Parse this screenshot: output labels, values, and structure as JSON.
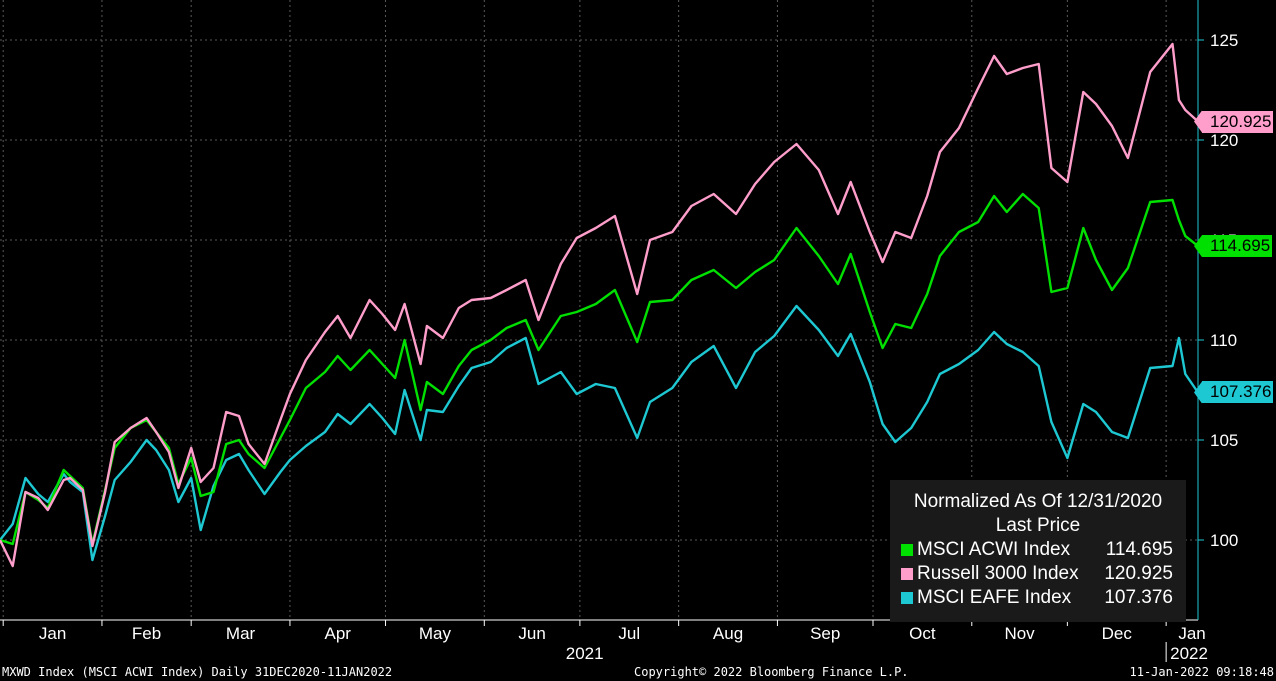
{
  "chart_data": {
    "type": "line",
    "title": "",
    "xlabel": "",
    "ylabel": "",
    "ylim": [
      96,
      127
    ],
    "y_ticks": [
      100,
      105,
      110,
      115,
      120,
      125
    ],
    "x_tick_labels": [
      "Jan",
      "Feb",
      "Mar",
      "Apr",
      "May",
      "Jun",
      "Jul",
      "Aug",
      "Sep",
      "Oct",
      "Nov",
      "Dec",
      "Jan"
    ],
    "year_labels": [
      "2021",
      "2022"
    ],
    "grid": true,
    "legend_position": "bottom-right",
    "legend": {
      "title_line1": "Normalized As Of 12/31/2020",
      "title_line2": "Last Price"
    },
    "x_start": "2020-12-31",
    "x_end": "2022-01-11",
    "series": [
      {
        "name": "MSCI ACWI Index",
        "color": "#00e000",
        "last_price": "114.695",
        "points": [
          [
            "2020-12-31",
            100.0
          ],
          [
            "2021-01-04",
            99.8
          ],
          [
            "2021-01-08",
            102.4
          ],
          [
            "2021-01-12",
            102.0
          ],
          [
            "2021-01-15",
            101.6
          ],
          [
            "2021-01-20",
            103.5
          ],
          [
            "2021-01-22",
            103.2
          ],
          [
            "2021-01-26",
            102.6
          ],
          [
            "2021-01-29",
            99.8
          ],
          [
            "2021-02-02",
            102.5
          ],
          [
            "2021-02-05",
            104.6
          ],
          [
            "2021-02-10",
            105.6
          ],
          [
            "2021-02-15",
            106.0
          ],
          [
            "2021-02-18",
            105.4
          ],
          [
            "2021-02-22",
            104.6
          ],
          [
            "2021-02-25",
            102.8
          ],
          [
            "2021-03-01",
            104.1
          ],
          [
            "2021-03-04",
            102.2
          ],
          [
            "2021-03-08",
            102.4
          ],
          [
            "2021-03-12",
            104.8
          ],
          [
            "2021-03-16",
            105.0
          ],
          [
            "2021-03-19",
            104.3
          ],
          [
            "2021-03-24",
            103.6
          ],
          [
            "2021-03-29",
            105.1
          ],
          [
            "2021-04-01",
            106.0
          ],
          [
            "2021-04-06",
            107.6
          ],
          [
            "2021-04-12",
            108.4
          ],
          [
            "2021-04-16",
            109.2
          ],
          [
            "2021-04-20",
            108.5
          ],
          [
            "2021-04-26",
            109.5
          ],
          [
            "2021-04-30",
            108.8
          ],
          [
            "2021-05-04",
            108.1
          ],
          [
            "2021-05-07",
            110.0
          ],
          [
            "2021-05-12",
            106.5
          ],
          [
            "2021-05-14",
            107.9
          ],
          [
            "2021-05-19",
            107.3
          ],
          [
            "2021-05-24",
            108.7
          ],
          [
            "2021-05-28",
            109.5
          ],
          [
            "2021-06-03",
            110.0
          ],
          [
            "2021-06-08",
            110.6
          ],
          [
            "2021-06-14",
            111.0
          ],
          [
            "2021-06-18",
            109.5
          ],
          [
            "2021-06-25",
            111.2
          ],
          [
            "2021-06-30",
            111.4
          ],
          [
            "2021-07-06",
            111.8
          ],
          [
            "2021-07-12",
            112.5
          ],
          [
            "2021-07-19",
            109.9
          ],
          [
            "2021-07-23",
            111.9
          ],
          [
            "2021-07-30",
            112.0
          ],
          [
            "2021-08-05",
            113.0
          ],
          [
            "2021-08-12",
            113.5
          ],
          [
            "2021-08-19",
            112.6
          ],
          [
            "2021-08-25",
            113.4
          ],
          [
            "2021-08-31",
            114.0
          ],
          [
            "2021-09-07",
            115.6
          ],
          [
            "2021-09-14",
            114.2
          ],
          [
            "2021-09-20",
            112.8
          ],
          [
            "2021-09-24",
            114.3
          ],
          [
            "2021-09-30",
            111.4
          ],
          [
            "2021-10-04",
            109.6
          ],
          [
            "2021-10-08",
            110.8
          ],
          [
            "2021-10-13",
            110.6
          ],
          [
            "2021-10-18",
            112.3
          ],
          [
            "2021-10-22",
            114.2
          ],
          [
            "2021-10-28",
            115.4
          ],
          [
            "2021-11-03",
            115.9
          ],
          [
            "2021-11-08",
            117.2
          ],
          [
            "2021-11-12",
            116.4
          ],
          [
            "2021-11-17",
            117.3
          ],
          [
            "2021-11-22",
            116.6
          ],
          [
            "2021-11-26",
            112.4
          ],
          [
            "2021-12-01",
            112.6
          ],
          [
            "2021-12-06",
            115.6
          ],
          [
            "2021-12-10",
            114.0
          ],
          [
            "2021-12-15",
            112.5
          ],
          [
            "2021-12-20",
            113.6
          ],
          [
            "2021-12-27",
            116.9
          ],
          [
            "2022-01-03",
            117.0
          ],
          [
            "2022-01-05",
            116.0
          ],
          [
            "2022-01-07",
            115.2
          ],
          [
            "2022-01-11",
            114.695
          ]
        ]
      },
      {
        "name": "Russell 3000 Index",
        "color": "#ff9ecb",
        "last_price": "120.925",
        "points": [
          [
            "2020-12-31",
            100.0
          ],
          [
            "2021-01-04",
            98.7
          ],
          [
            "2021-01-08",
            102.4
          ],
          [
            "2021-01-12",
            102.1
          ],
          [
            "2021-01-15",
            101.5
          ],
          [
            "2021-01-20",
            103.0
          ],
          [
            "2021-01-22",
            103.1
          ],
          [
            "2021-01-26",
            102.5
          ],
          [
            "2021-01-29",
            99.7
          ],
          [
            "2021-02-02",
            102.4
          ],
          [
            "2021-02-05",
            104.9
          ],
          [
            "2021-02-10",
            105.6
          ],
          [
            "2021-02-15",
            106.1
          ],
          [
            "2021-02-18",
            105.4
          ],
          [
            "2021-02-22",
            104.4
          ],
          [
            "2021-02-25",
            102.6
          ],
          [
            "2021-03-01",
            104.6
          ],
          [
            "2021-03-04",
            102.9
          ],
          [
            "2021-03-08",
            103.6
          ],
          [
            "2021-03-12",
            106.4
          ],
          [
            "2021-03-16",
            106.2
          ],
          [
            "2021-03-19",
            104.8
          ],
          [
            "2021-03-24",
            103.8
          ],
          [
            "2021-03-29",
            106.0
          ],
          [
            "2021-04-01",
            107.3
          ],
          [
            "2021-04-06",
            109.0
          ],
          [
            "2021-04-12",
            110.4
          ],
          [
            "2021-04-16",
            111.2
          ],
          [
            "2021-04-20",
            110.1
          ],
          [
            "2021-04-26",
            112.0
          ],
          [
            "2021-04-30",
            111.3
          ],
          [
            "2021-05-04",
            110.5
          ],
          [
            "2021-05-07",
            111.8
          ],
          [
            "2021-05-12",
            108.8
          ],
          [
            "2021-05-14",
            110.7
          ],
          [
            "2021-05-19",
            110.1
          ],
          [
            "2021-05-24",
            111.6
          ],
          [
            "2021-05-28",
            112.0
          ],
          [
            "2021-06-03",
            112.1
          ],
          [
            "2021-06-08",
            112.5
          ],
          [
            "2021-06-14",
            113.0
          ],
          [
            "2021-06-18",
            111.0
          ],
          [
            "2021-06-25",
            113.8
          ],
          [
            "2021-06-30",
            115.1
          ],
          [
            "2021-07-06",
            115.6
          ],
          [
            "2021-07-12",
            116.2
          ],
          [
            "2021-07-19",
            112.3
          ],
          [
            "2021-07-23",
            115.0
          ],
          [
            "2021-07-30",
            115.4
          ],
          [
            "2021-08-05",
            116.7
          ],
          [
            "2021-08-12",
            117.3
          ],
          [
            "2021-08-19",
            116.3
          ],
          [
            "2021-08-25",
            117.8
          ],
          [
            "2021-08-31",
            118.9
          ],
          [
            "2021-09-07",
            119.8
          ],
          [
            "2021-09-14",
            118.5
          ],
          [
            "2021-09-20",
            116.3
          ],
          [
            "2021-09-24",
            117.9
          ],
          [
            "2021-09-30",
            115.4
          ],
          [
            "2021-10-04",
            113.9
          ],
          [
            "2021-10-08",
            115.4
          ],
          [
            "2021-10-13",
            115.1
          ],
          [
            "2021-10-18",
            117.2
          ],
          [
            "2021-10-22",
            119.4
          ],
          [
            "2021-10-28",
            120.6
          ],
          [
            "2021-11-03",
            122.6
          ],
          [
            "2021-11-08",
            124.2
          ],
          [
            "2021-11-12",
            123.3
          ],
          [
            "2021-11-17",
            123.6
          ],
          [
            "2021-11-22",
            123.8
          ],
          [
            "2021-11-26",
            118.6
          ],
          [
            "2021-12-01",
            117.9
          ],
          [
            "2021-12-06",
            122.4
          ],
          [
            "2021-12-10",
            121.8
          ],
          [
            "2021-12-15",
            120.7
          ],
          [
            "2021-12-20",
            119.1
          ],
          [
            "2021-12-27",
            123.4
          ],
          [
            "2022-01-03",
            124.8
          ],
          [
            "2022-01-05",
            122.0
          ],
          [
            "2022-01-07",
            121.5
          ],
          [
            "2022-01-11",
            120.925
          ]
        ]
      },
      {
        "name": "MSCI EAFE Index",
        "color": "#1ec8d2",
        "last_price": "107.376",
        "points": [
          [
            "2020-12-31",
            100.0
          ],
          [
            "2021-01-04",
            100.8
          ],
          [
            "2021-01-08",
            103.1
          ],
          [
            "2021-01-12",
            102.3
          ],
          [
            "2021-01-15",
            101.9
          ],
          [
            "2021-01-20",
            103.3
          ],
          [
            "2021-01-22",
            102.9
          ],
          [
            "2021-01-26",
            102.4
          ],
          [
            "2021-01-29",
            99.0
          ],
          [
            "2021-02-02",
            101.2
          ],
          [
            "2021-02-05",
            103.0
          ],
          [
            "2021-02-10",
            103.9
          ],
          [
            "2021-02-15",
            105.0
          ],
          [
            "2021-02-18",
            104.5
          ],
          [
            "2021-02-22",
            103.5
          ],
          [
            "2021-02-25",
            101.9
          ],
          [
            "2021-03-01",
            103.1
          ],
          [
            "2021-03-04",
            100.5
          ],
          [
            "2021-03-08",
            102.7
          ],
          [
            "2021-03-12",
            104.0
          ],
          [
            "2021-03-16",
            104.3
          ],
          [
            "2021-03-19",
            103.5
          ],
          [
            "2021-03-24",
            102.3
          ],
          [
            "2021-03-29",
            103.4
          ],
          [
            "2021-04-01",
            104.0
          ],
          [
            "2021-04-06",
            104.7
          ],
          [
            "2021-04-12",
            105.4
          ],
          [
            "2021-04-16",
            106.3
          ],
          [
            "2021-04-20",
            105.8
          ],
          [
            "2021-04-26",
            106.8
          ],
          [
            "2021-04-30",
            106.1
          ],
          [
            "2021-05-04",
            105.3
          ],
          [
            "2021-05-07",
            107.5
          ],
          [
            "2021-05-12",
            105.0
          ],
          [
            "2021-05-14",
            106.5
          ],
          [
            "2021-05-19",
            106.4
          ],
          [
            "2021-05-24",
            107.7
          ],
          [
            "2021-05-28",
            108.6
          ],
          [
            "2021-06-03",
            108.9
          ],
          [
            "2021-06-08",
            109.6
          ],
          [
            "2021-06-14",
            110.1
          ],
          [
            "2021-06-18",
            107.8
          ],
          [
            "2021-06-25",
            108.4
          ],
          [
            "2021-06-30",
            107.3
          ],
          [
            "2021-07-06",
            107.8
          ],
          [
            "2021-07-12",
            107.6
          ],
          [
            "2021-07-19",
            105.1
          ],
          [
            "2021-07-23",
            106.9
          ],
          [
            "2021-07-30",
            107.6
          ],
          [
            "2021-08-05",
            108.9
          ],
          [
            "2021-08-12",
            109.7
          ],
          [
            "2021-08-19",
            107.6
          ],
          [
            "2021-08-25",
            109.4
          ],
          [
            "2021-08-31",
            110.2
          ],
          [
            "2021-09-07",
            111.7
          ],
          [
            "2021-09-14",
            110.5
          ],
          [
            "2021-09-20",
            109.2
          ],
          [
            "2021-09-24",
            110.3
          ],
          [
            "2021-09-30",
            107.9
          ],
          [
            "2021-10-04",
            105.8
          ],
          [
            "2021-10-08",
            104.9
          ],
          [
            "2021-10-13",
            105.6
          ],
          [
            "2021-10-18",
            106.9
          ],
          [
            "2021-10-22",
            108.3
          ],
          [
            "2021-10-28",
            108.8
          ],
          [
            "2021-11-03",
            109.5
          ],
          [
            "2021-11-08",
            110.4
          ],
          [
            "2021-11-12",
            109.8
          ],
          [
            "2021-11-17",
            109.4
          ],
          [
            "2021-11-22",
            108.7
          ],
          [
            "2021-11-26",
            105.9
          ],
          [
            "2021-12-01",
            104.1
          ],
          [
            "2021-12-06",
            106.8
          ],
          [
            "2021-12-10",
            106.4
          ],
          [
            "2021-12-15",
            105.4
          ],
          [
            "2021-12-20",
            105.1
          ],
          [
            "2021-12-27",
            108.6
          ],
          [
            "2022-01-03",
            108.7
          ],
          [
            "2022-01-05",
            110.1
          ],
          [
            "2022-01-07",
            108.3
          ],
          [
            "2022-01-11",
            107.376
          ]
        ]
      }
    ]
  },
  "footer": {
    "left": "MXWD Index (MSCI ACWI Index)  Daily 31DEC2020-11JAN2022",
    "center": "Copyright© 2022 Bloomberg Finance L.P.",
    "right": "11-Jan-2022 09:18:48"
  }
}
